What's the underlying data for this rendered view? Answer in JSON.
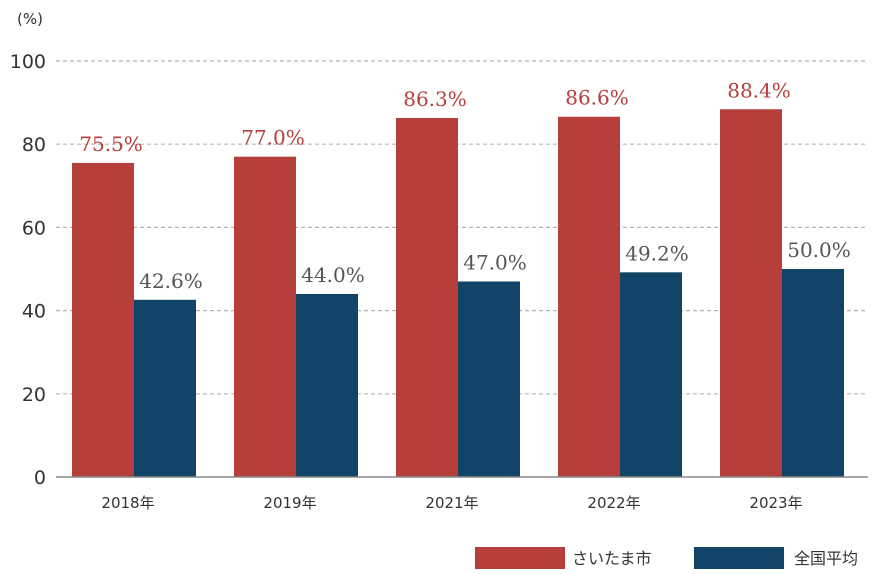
{
  "chart_data": {
    "type": "bar",
    "unit_label": "(%)",
    "categories": [
      "2018年",
      "2019年",
      "2021年",
      "2022年",
      "2023年"
    ],
    "series": [
      {
        "name": "さいたま市",
        "color": "#b73f3b",
        "label_color": "#b73f3b",
        "values": [
          75.5,
          77.0,
          86.3,
          86.6,
          88.4
        ],
        "value_labels": [
          "75.5%",
          "77.0%",
          "86.3%",
          "86.6%",
          "88.4%"
        ]
      },
      {
        "name": "全国平均",
        "color": "#114467",
        "label_color": "#555555",
        "values": [
          42.6,
          44.0,
          47.0,
          49.2,
          50.0
        ],
        "value_labels": [
          "42.6%",
          "44.0%",
          "47.0%",
          "49.2%",
          "50.0%"
        ]
      }
    ],
    "ylim": [
      0,
      100
    ],
    "yticks": [
      "0",
      "20",
      "40",
      "60",
      "80",
      "100"
    ],
    "grid": true,
    "legend": "bottom-right"
  }
}
